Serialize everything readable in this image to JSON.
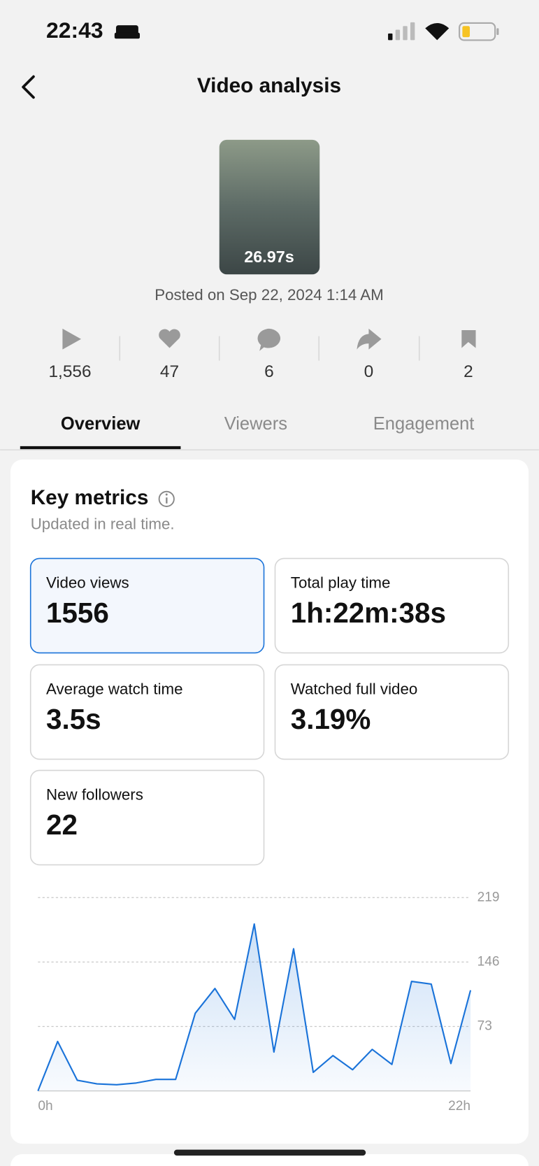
{
  "status_bar": {
    "time": "22:43"
  },
  "header": {
    "title": "Video analysis"
  },
  "video": {
    "duration": "26.97s",
    "posted": "Posted on Sep 22, 2024 1:14 AM"
  },
  "stats": [
    "1,556",
    "47",
    "6",
    "0",
    "2"
  ],
  "tabs": [
    "Overview",
    "Viewers",
    "Engagement"
  ],
  "key_metrics": {
    "title": "Key metrics",
    "subtitle": "Updated in real time.",
    "cards": [
      {
        "label": "Video views",
        "value": "1556"
      },
      {
        "label": "Total play time",
        "value": "1h:22m:38s"
      },
      {
        "label": "Average watch time",
        "value": "3.5s"
      },
      {
        "label": "Watched full video",
        "value": "3.19%"
      },
      {
        "label": "New followers",
        "value": "22"
      }
    ]
  },
  "chart_data": {
    "type": "line",
    "x": [
      0,
      1,
      2,
      3,
      4,
      5,
      6,
      7,
      8,
      9,
      10,
      11,
      12,
      13,
      14,
      15,
      16,
      17,
      18,
      19,
      20,
      21,
      22
    ],
    "values": [
      0,
      56,
      12,
      8,
      7,
      9,
      13,
      13,
      88,
      116,
      81,
      189,
      44,
      161,
      21,
      40,
      24,
      47,
      30,
      124,
      121,
      31,
      114
    ],
    "color": "#1a73d9",
    "xlim": [
      0,
      22
    ],
    "xticks": [
      {
        "value": 0,
        "label": "0h"
      },
      {
        "value": 22,
        "label": "22h"
      }
    ],
    "ylim": [
      0,
      219
    ],
    "yticks": [
      73,
      146,
      219
    ],
    "grid": true
  }
}
